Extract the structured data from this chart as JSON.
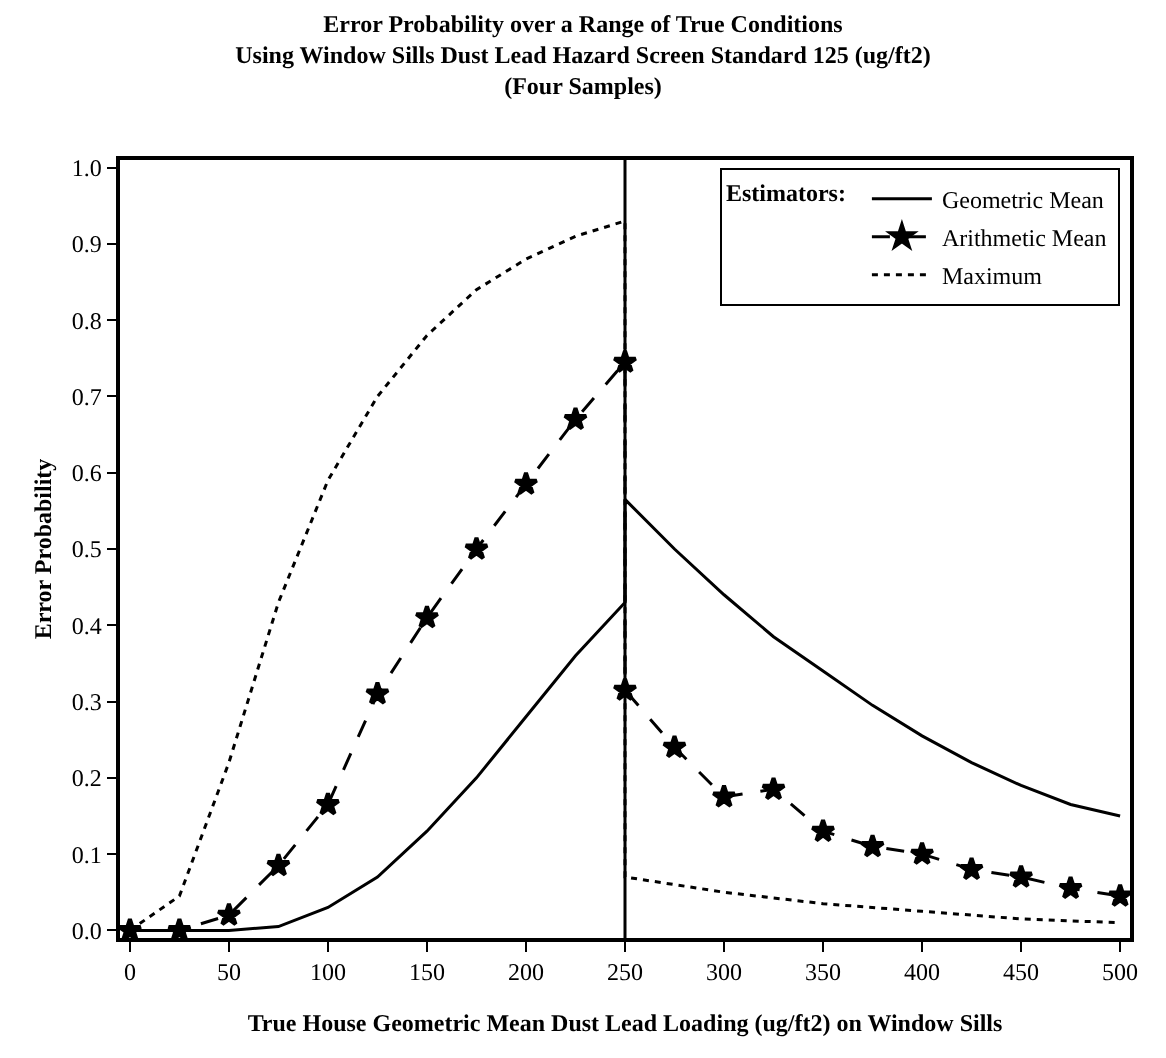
{
  "chart_data": {
    "type": "line",
    "title": "Error Probability over a Range of True Conditions\nUsing Window Sills Dust Lead Hazard Screen Standard 125 (ug/ft2)\n(Four Samples)",
    "xlabel": "True House Geometric Mean Dust Lead Loading (ug/ft2) on Window Sills",
    "ylabel": "Error Probability",
    "legend_title": "Estimators:",
    "legend": "top right",
    "grid": false,
    "xlim": [
      -5,
      505
    ],
    "xticks": [
      0,
      50,
      100,
      150,
      200,
      250,
      300,
      350,
      400,
      450,
      500
    ],
    "ylim": [
      -0.01,
      1.01
    ],
    "yticks": [
      {
        "value": 0,
        "label": "0.0"
      },
      0.1,
      0.2,
      0.3,
      0.4,
      0.5,
      0.6,
      0.7,
      0.8,
      0.9,
      {
        "value": 1,
        "label": "1.0"
      }
    ],
    "ref_lines": [
      {
        "axis": "x",
        "value": 250,
        "color": "#000000",
        "line_style": "solid"
      }
    ],
    "series": [
      {
        "name": "Geometric Mean",
        "color": "#000000",
        "line_style": "solid",
        "marker": "none",
        "x": [
          0,
          25,
          50,
          75,
          100,
          125,
          150,
          175,
          200,
          225,
          250,
          250,
          275,
          300,
          325,
          350,
          375,
          400,
          425,
          450,
          475,
          500
        ],
        "values": [
          0,
          0,
          0,
          0.005,
          0.03,
          0.07,
          0.13,
          0.2,
          0.28,
          0.36,
          0.43,
          0.565,
          0.5,
          0.44,
          0.385,
          0.34,
          0.295,
          0.255,
          0.22,
          0.19,
          0.165,
          0.15
        ]
      },
      {
        "name": "Arithmetic Mean",
        "color": "#000000",
        "line_style": "dashed",
        "marker": "star",
        "x": [
          0,
          25,
          50,
          75,
          100,
          125,
          150,
          175,
          200,
          225,
          250,
          250,
          275,
          300,
          325,
          350,
          375,
          400,
          425,
          450,
          475,
          500
        ],
        "values": [
          0,
          0,
          0.02,
          0.085,
          0.165,
          0.31,
          0.41,
          0.5,
          0.585,
          0.67,
          0.745,
          0.315,
          0.24,
          0.175,
          0.185,
          0.13,
          0.11,
          0.1,
          0.08,
          0.07,
          0.055,
          0.045
        ]
      },
      {
        "name": "Maximum",
        "color": "#000000",
        "line_style": "dotted",
        "marker": "none",
        "x": [
          0,
          25,
          50,
          75,
          100,
          125,
          150,
          175,
          200,
          225,
          250,
          250,
          300,
          350,
          400,
          450,
          500
        ],
        "values": [
          0,
          0.045,
          0.22,
          0.43,
          0.59,
          0.7,
          0.78,
          0.84,
          0.88,
          0.91,
          0.93,
          0.07,
          0.05,
          0.035,
          0.025,
          0.015,
          0.01
        ]
      }
    ]
  }
}
